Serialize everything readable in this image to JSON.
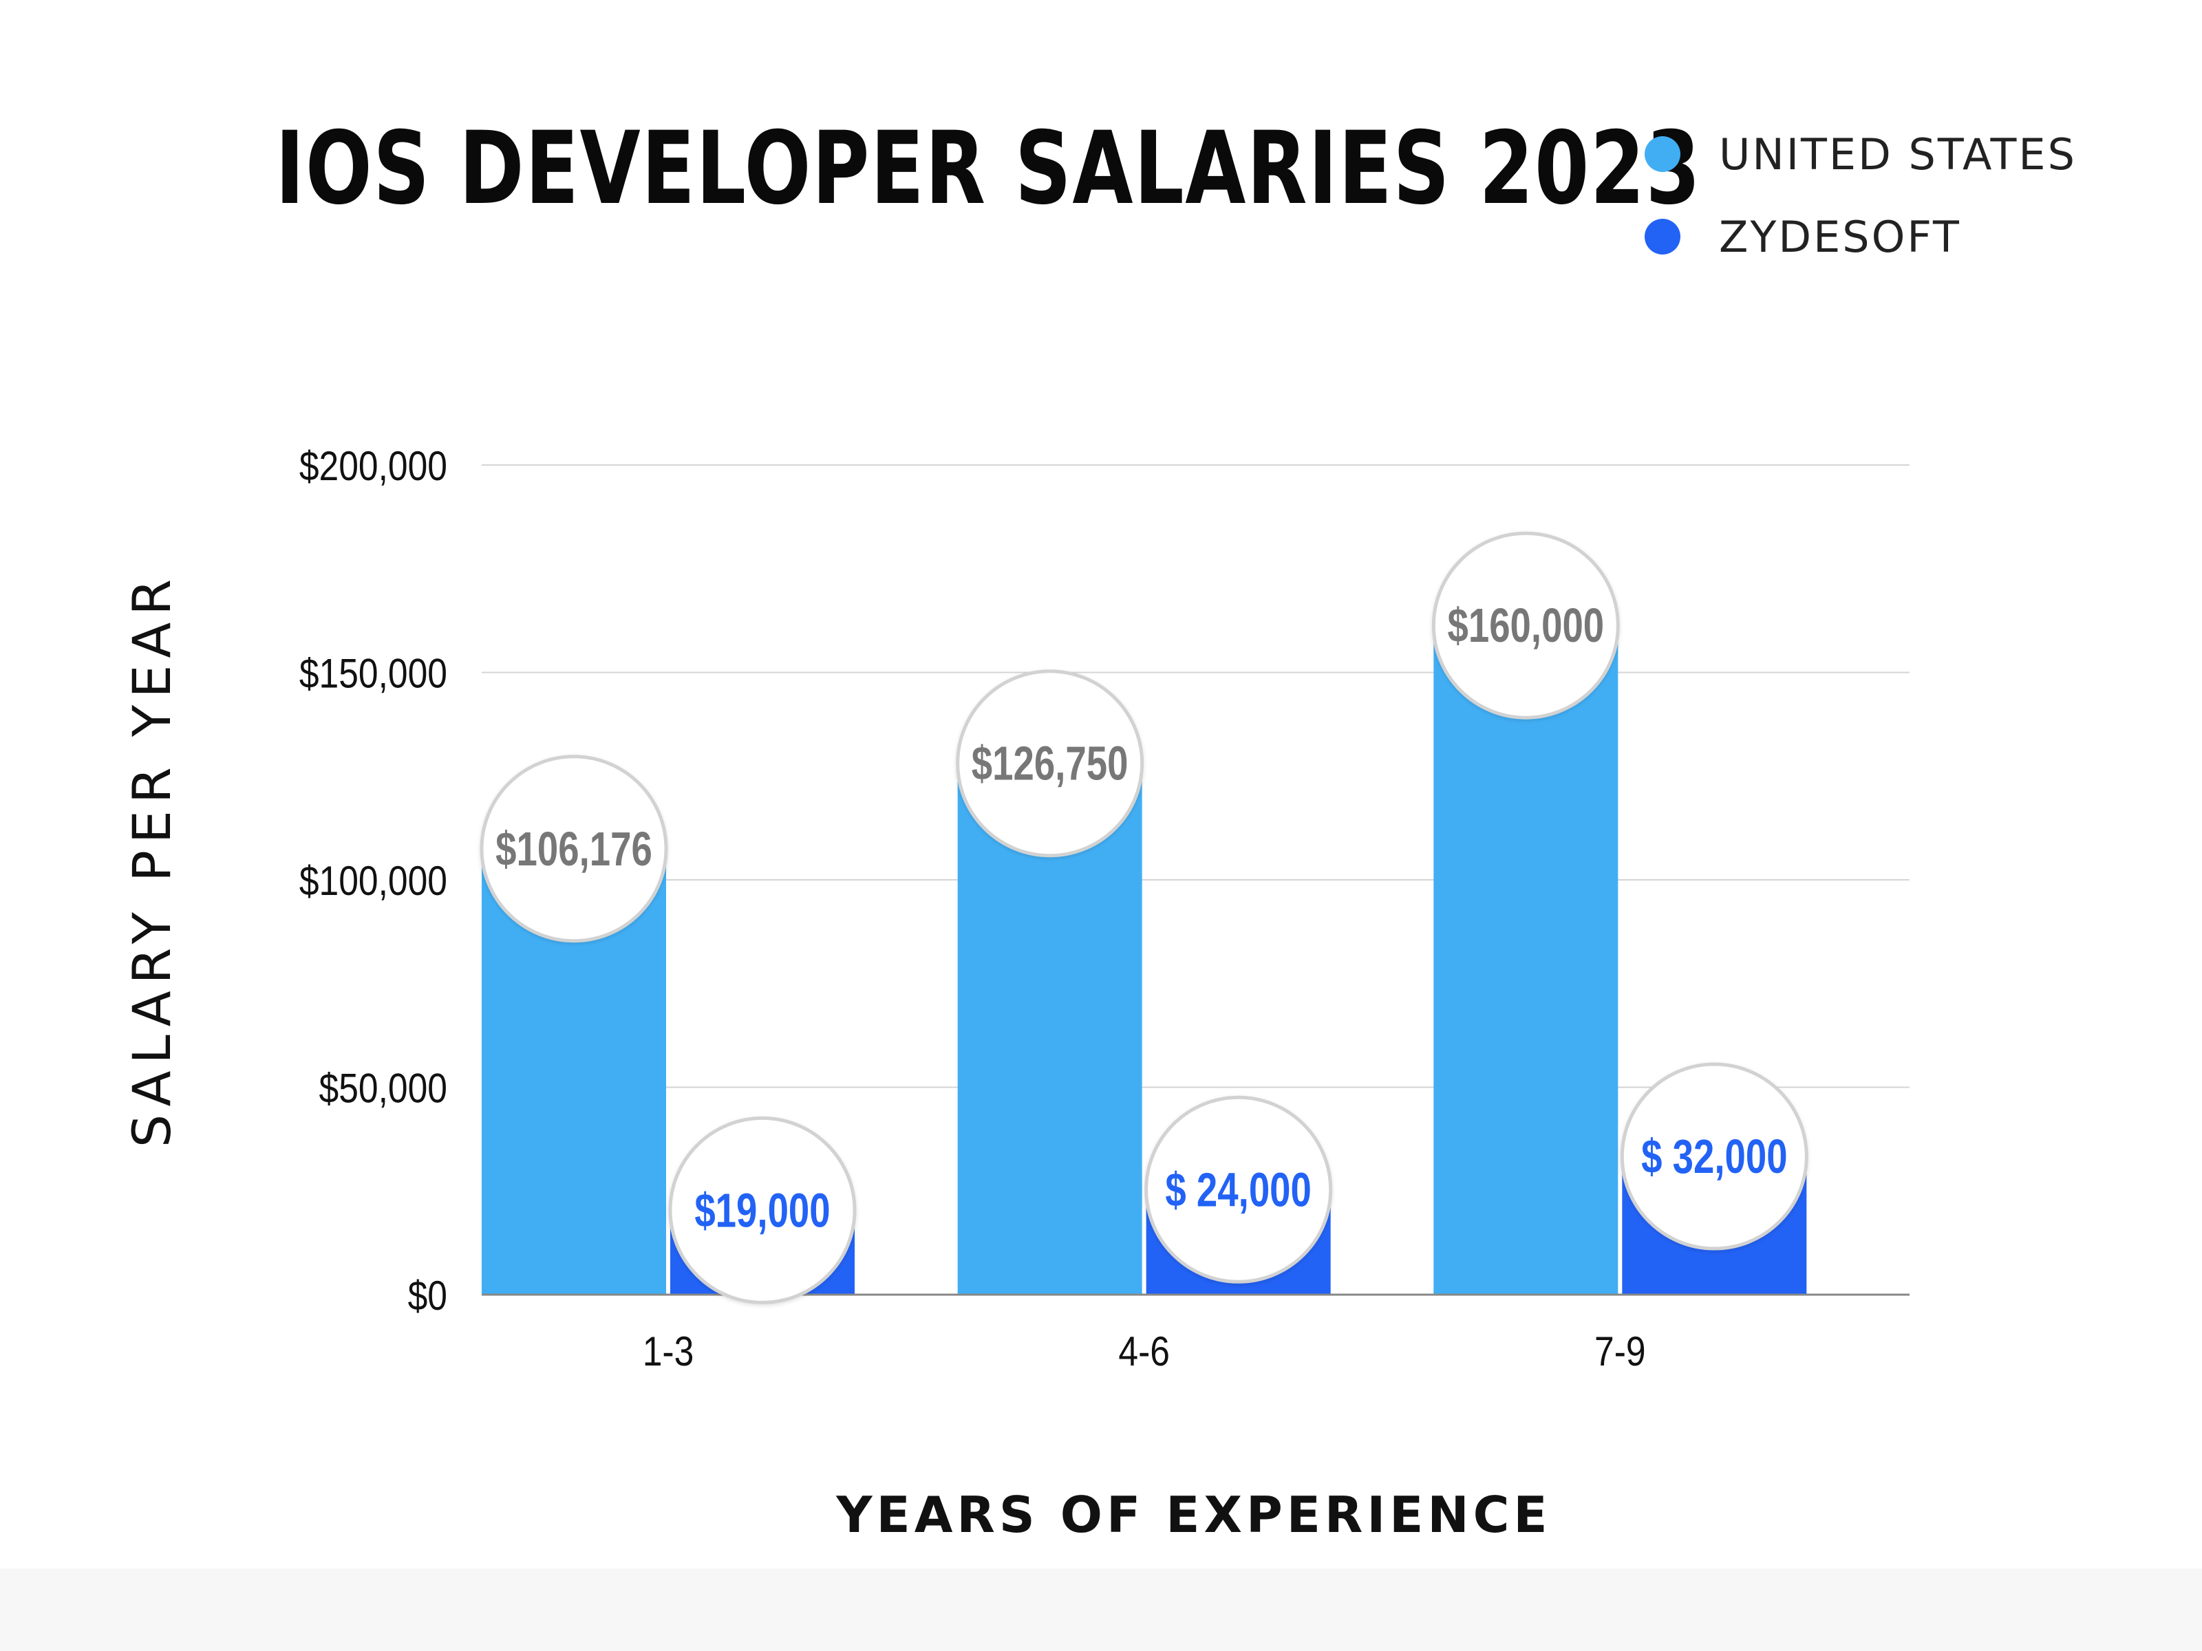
{
  "chart_data": {
    "type": "bar",
    "title": "IOS DEVELOPER SALARIES 2023",
    "xlabel": "YEARS OF EXPERIENCE",
    "ylabel": "SALARY PER YEAR",
    "categories": [
      "1-3",
      "4-6",
      "7-9"
    ],
    "series": [
      {
        "name": "UNITED STATES",
        "color": "#41aef4",
        "values": [
          106176,
          126750,
          160000
        ],
        "labels": [
          "$106,176",
          "$126,750",
          "$160,000"
        ],
        "label_color": "#777777"
      },
      {
        "name": "ZYDESOFT",
        "color": "#2262f5",
        "values": [
          19000,
          24000,
          32000
        ],
        "labels": [
          "$19,000",
          "$ 24,000",
          "$ 32,000"
        ],
        "label_color": "#2262f5"
      }
    ],
    "ylim": [
      0,
      200000
    ],
    "yticks": [
      0,
      50000,
      100000,
      150000,
      200000
    ],
    "ytick_labels": [
      "$0",
      "$50,000",
      "$100,000",
      "$150,000",
      "$200,000"
    ],
    "grid": true,
    "legend_position": "top-right"
  }
}
